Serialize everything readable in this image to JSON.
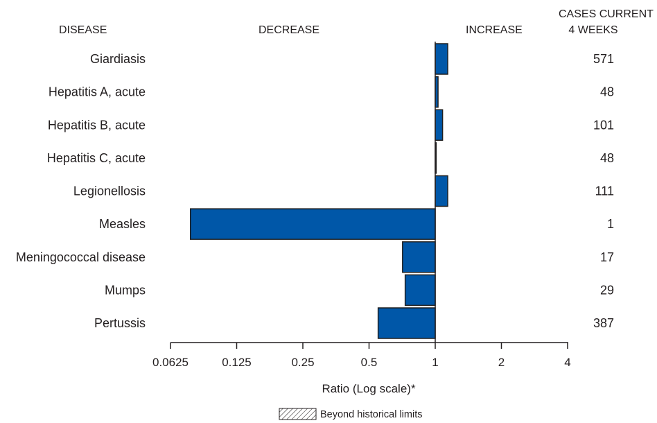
{
  "headers": {
    "disease": "DISEASE",
    "decrease": "DECREASE",
    "increase": "INCREASE",
    "cases_line1": "CASES CURRENT",
    "cases_line2": "4 WEEKS"
  },
  "chart_data": {
    "type": "bar",
    "orientation": "horizontal",
    "categories": [
      "Giardiasis",
      "Hepatitis A, acute",
      "Hepatitis B, acute",
      "Hepatitis C, acute",
      "Legionellosis",
      "Measles",
      "Meningococcal disease",
      "Mumps",
      "Pertussis"
    ],
    "values": [
      1.14,
      1.03,
      1.08,
      1.01,
      1.14,
      0.077,
      0.71,
      0.73,
      0.55
    ],
    "cases_current_4_weeks": [
      571,
      48,
      101,
      48,
      111,
      1,
      17,
      29,
      387
    ],
    "beyond_historical_limits": [
      false,
      false,
      false,
      false,
      false,
      false,
      false,
      false,
      false
    ],
    "xlabel": "Ratio (Log scale)*",
    "xscale": "log2",
    "xlim": [
      0.0625,
      4
    ],
    "xticks": [
      0.0625,
      0.125,
      0.25,
      0.5,
      1,
      2,
      4
    ],
    "xtick_labels": [
      "0.0625",
      "0.125",
      "0.25",
      "0.5",
      "1",
      "2",
      "4"
    ],
    "reference_value": 1,
    "grid": false,
    "legend": {
      "label": "Beyond historical limits",
      "pattern": "diagonal-hatch",
      "placement": "bottom-center"
    }
  },
  "colors": {
    "bar_fill": "#0057a8",
    "bar_stroke": "#1f1f1f",
    "axis": "#231f20"
  }
}
